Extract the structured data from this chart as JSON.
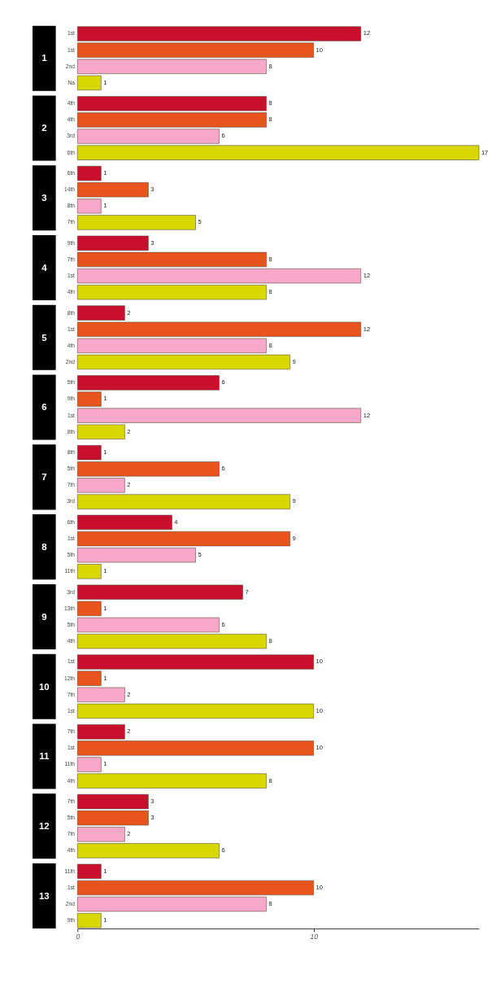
{
  "chart_data": [
    {
      "type": "bar",
      "orientation": "horizontal",
      "title": "1",
      "categories": [
        "1st",
        "1st",
        "2nd",
        "Na"
      ],
      "values": [
        12,
        10,
        8,
        1
      ],
      "colors": [
        "#c8102e",
        "#e8541e",
        "#f7a8c8",
        "#d8d800"
      ],
      "data_labels": true,
      "tick_labels": "y"
    },
    {
      "type": "bar",
      "orientation": "horizontal",
      "title": "2",
      "categories": [
        "4th",
        "4th",
        "3rd",
        "6th"
      ],
      "values": [
        8,
        8,
        6,
        17
      ],
      "colors": [
        "#c8102e",
        "#e8541e",
        "#f7a8c8",
        "#d8d800"
      ],
      "data_labels": true,
      "tick_labels": "y"
    },
    {
      "type": "bar",
      "orientation": "horizontal",
      "title": "3",
      "categories": [
        "6th",
        "14th",
        "8th",
        "7th"
      ],
      "values": [
        1,
        3,
        1,
        5
      ],
      "colors": [
        "#c8102e",
        "#e8541e",
        "#f7a8c8",
        "#d8d800"
      ],
      "data_labels": true,
      "tick_labels": "y"
    },
    {
      "type": "bar",
      "orientation": "horizontal",
      "title": "4",
      "categories": [
        "9th",
        "7th",
        "1st",
        "4th"
      ],
      "values": [
        3,
        8,
        12,
        8
      ],
      "colors": [
        "#c8102e",
        "#e8541e",
        "#f7a8c8",
        "#d8d800"
      ],
      "data_labels": true,
      "tick_labels": "y"
    },
    {
      "type": "bar",
      "orientation": "horizontal",
      "title": "5",
      "categories": [
        "8th",
        "1st",
        "4th",
        "2nd"
      ],
      "values": [
        2,
        12,
        8,
        9
      ],
      "colors": [
        "#c8102e",
        "#e8541e",
        "#f7a8c8",
        "#d8d800"
      ],
      "data_labels": true,
      "tick_labels": "y"
    },
    {
      "type": "bar",
      "orientation": "horizontal",
      "title": "6",
      "categories": [
        "5th",
        "9th",
        "1st",
        "8th"
      ],
      "values": [
        6,
        1,
        12,
        2
      ],
      "colors": [
        "#c8102e",
        "#e8541e",
        "#f7a8c8",
        "#d8d800"
      ],
      "data_labels": true,
      "tick_labels": "y"
    },
    {
      "type": "bar",
      "orientation": "horizontal",
      "title": "7",
      "categories": [
        "8th",
        "5th",
        "7th",
        "3rd"
      ],
      "values": [
        1,
        6,
        2,
        9
      ],
      "colors": [
        "#c8102e",
        "#e8541e",
        "#f7a8c8",
        "#d8d800"
      ],
      "data_labels": true,
      "tick_labels": "y"
    },
    {
      "type": "bar",
      "orientation": "horizontal",
      "title": "8",
      "categories": [
        "6th",
        "1st",
        "5th",
        "11th"
      ],
      "values": [
        4,
        9,
        5,
        1
      ],
      "colors": [
        "#c8102e",
        "#e8541e",
        "#f7a8c8",
        "#d8d800"
      ],
      "data_labels": true,
      "tick_labels": "y"
    },
    {
      "type": "bar",
      "orientation": "horizontal",
      "title": "9",
      "categories": [
        "3rd",
        "13th",
        "5th",
        "4th"
      ],
      "values": [
        7,
        1,
        6,
        8
      ],
      "colors": [
        "#c8102e",
        "#e8541e",
        "#f7a8c8",
        "#d8d800"
      ],
      "data_labels": true,
      "tick_labels": "y"
    },
    {
      "type": "bar",
      "orientation": "horizontal",
      "title": "10",
      "categories": [
        "1st",
        "12th",
        "7th",
        "1st"
      ],
      "values": [
        10,
        1,
        2,
        10
      ],
      "colors": [
        "#c8102e",
        "#e8541e",
        "#f7a8c8",
        "#d8d800"
      ],
      "data_labels": true,
      "tick_labels": "y"
    },
    {
      "type": "bar",
      "orientation": "horizontal",
      "title": "11",
      "categories": [
        "7th",
        "1st",
        "11th",
        "4th"
      ],
      "values": [
        2,
        10,
        1,
        8
      ],
      "colors": [
        "#c8102e",
        "#e8541e",
        "#f7a8c8",
        "#d8d800"
      ],
      "data_labels": true,
      "tick_labels": "y"
    },
    {
      "type": "bar",
      "orientation": "horizontal",
      "title": "12",
      "categories": [
        "7th",
        "5th",
        "7th",
        "4th"
      ],
      "values": [
        3,
        3,
        2,
        6
      ],
      "colors": [
        "#c8102e",
        "#e8541e",
        "#f7a8c8",
        "#d8d800"
      ],
      "data_labels": true,
      "tick_labels": "y"
    },
    {
      "type": "bar",
      "orientation": "horizontal",
      "title": "13",
      "categories": [
        "11th",
        "1st",
        "2nd",
        "9th"
      ],
      "values": [
        1,
        10,
        8,
        1
      ],
      "colors": [
        "#c8102e",
        "#e8541e",
        "#f7a8c8",
        "#d8d800"
      ],
      "data_labels": true,
      "xlim": [
        0,
        17
      ],
      "xticks": [
        0,
        10
      ]
    }
  ]
}
